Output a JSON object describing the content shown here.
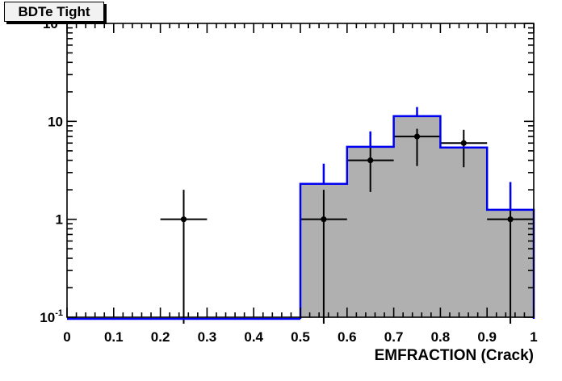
{
  "title": "BDTe Tight",
  "colors": {
    "background": "#ffffff",
    "hist_fill": "#b0b0b0",
    "hist_line": "#0000f0",
    "data_marker": "#000000",
    "frame": "#000000",
    "title_box_bg": "#f2f2f2",
    "title_box_border": "#000000",
    "title_box_shadow": "#000000"
  },
  "chart_data": {
    "type": "bar",
    "subtype": "histogram-with-data-points",
    "title": "BDTe Tight",
    "xlabel": "EMFRACTION (Crack)",
    "ylabel": "",
    "x_range": [
      0,
      1
    ],
    "y_range": [
      0.1,
      100
    ],
    "y_scale": "log",
    "grid": false,
    "legend": null,
    "x_tick_labels": [
      "0",
      "0.1",
      "0.2",
      "0.3",
      "0.4",
      "0.5",
      "0.6",
      "0.7",
      "0.8",
      "0.9",
      "1"
    ],
    "x_minor_tick_step": 0.02,
    "y_tick_labels": [
      {
        "value": 100,
        "base": "10",
        "sup": "2"
      },
      {
        "value": 10,
        "base": "10",
        "sup": ""
      },
      {
        "value": 1,
        "base": "1",
        "sup": ""
      },
      {
        "value": 0.1,
        "base": "10",
        "sup": "-1"
      }
    ],
    "series": [
      {
        "name": "mc-histogram",
        "style": "gray filled steps with blue outline and blue upper error spikes",
        "bin_edges": [
          0,
          0.1,
          0.2,
          0.3,
          0.4,
          0.5,
          0.6,
          0.7,
          0.8,
          0.9,
          1.0
        ],
        "values": [
          0,
          0,
          0,
          0,
          0,
          2.3,
          5.5,
          11.3,
          5.4,
          1.25
        ],
        "error_tops": [
          null,
          null,
          null,
          null,
          null,
          3.7,
          7.9,
          14,
          null,
          2.4
        ]
      },
      {
        "name": "data-points",
        "style": "black filled circle markers with asymmetric error bars; null y_lo means clipped below axis",
        "points": [
          {
            "x": 0.25,
            "y": 1,
            "xerr": 0.05,
            "y_hi": 2.0,
            "y_lo": null
          },
          {
            "x": 0.55,
            "y": 1,
            "xerr": 0.05,
            "y_hi": 2.0,
            "y_lo": null
          },
          {
            "x": 0.65,
            "y": 4,
            "xerr": 0.05,
            "y_hi": 6.0,
            "y_lo": 1.9
          },
          {
            "x": 0.75,
            "y": 7,
            "xerr": 0.05,
            "y_hi": 8.4,
            "y_lo": 3.5
          },
          {
            "x": 0.85,
            "y": 6,
            "xerr": 0.05,
            "y_hi": 8.2,
            "y_lo": 3.4
          },
          {
            "x": 0.95,
            "y": 1,
            "xerr": 0.05,
            "y_hi": 2.0,
            "y_lo": null
          }
        ]
      }
    ]
  }
}
